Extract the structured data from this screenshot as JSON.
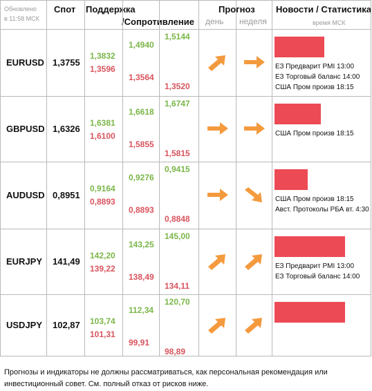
{
  "header": {
    "updated_line1": "Обновлено",
    "updated_line2": "в 11:58 МСК",
    "spot": "Спот",
    "support": "Поддержка",
    "resistance": "/Сопротивление",
    "forecast": "Прогноз",
    "day": "день",
    "week": "неделя",
    "news": "Новости / Статистика",
    "news_time": "время МСК"
  },
  "colors": {
    "green": "#7ab648",
    "red": "#d9545e",
    "bar": "#ec4a55",
    "arrow": "#f49a3e",
    "grid": "#b9b9b9"
  },
  "rows": [
    {
      "pair": "EURUSD",
      "spot": "1,3755",
      "s1g": "1,3832",
      "s1r": "1,3596",
      "s2g": "1,4940",
      "s2r": "1,3564",
      "s3g": "1,5144",
      "s3r": "1,3520",
      "day_arrow": "arrow-up-right-icon",
      "week_arrow": "arrow-right-icon",
      "bar_fraction": 0.6,
      "news": [
        "ЕЗ Предварит PMI 13:00",
        "ЕЗ Торговый баланс 14:00",
        "США Пром произв 18:15"
      ]
    },
    {
      "pair": "GBPUSD",
      "spot": "1,6326",
      "s1g": "1,6381",
      "s1r": "1,6100",
      "s2g": "1,6618",
      "s2r": "1,5855",
      "s3g": "1,6747",
      "s3r": "1,5815",
      "day_arrow": "arrow-right-icon",
      "week_arrow": "arrow-right-icon",
      "bar_fraction": 0.56,
      "news": [
        "США Пром произв 18:15"
      ]
    },
    {
      "pair": "AUDUSD",
      "spot": "0,8951",
      "s1g": "0,9164",
      "s1r": "0,8893",
      "s2g": "0,9276",
      "s2r": "0,8893",
      "s3g": "0,9415",
      "s3r": "0,8848",
      "day_arrow": "arrow-right-icon",
      "week_arrow": "arrow-down-right-icon",
      "bar_fraction": 0.4,
      "news": [
        "США Пром произв 18:15",
        "Авст. Протоколы РБА вт. 4:30"
      ]
    },
    {
      "pair": "EURJPY",
      "spot": "141,49",
      "s1g": "142,20",
      "s1r": "139,22",
      "s2g": "143,25",
      "s2r": "138,49",
      "s3g": "145,00",
      "s3r": "134,11",
      "day_arrow": "arrow-up-right-icon",
      "week_arrow": "arrow-up-right-icon",
      "bar_fraction": 0.85,
      "news": [
        "ЕЗ Предварит PMI 13:00",
        "ЕЗ Торговый баланс 14:00"
      ]
    },
    {
      "pair": "USDJPY",
      "spot": "102,87",
      "s1g": "103,74",
      "s1r": "101,31",
      "s2g": "112,34",
      "s2r": "99,91",
      "s3g": "120,70",
      "s3r": "98,89",
      "day_arrow": "arrow-up-right-icon",
      "week_arrow": "arrow-up-right-icon",
      "bar_fraction": 0.85,
      "news": []
    }
  ],
  "disclaimer": "Прогнозы и индикаторы не должны рассматриваться, как персональная рекомендация или инвестиционный совет. См. полный отказ от рисков ниже."
}
